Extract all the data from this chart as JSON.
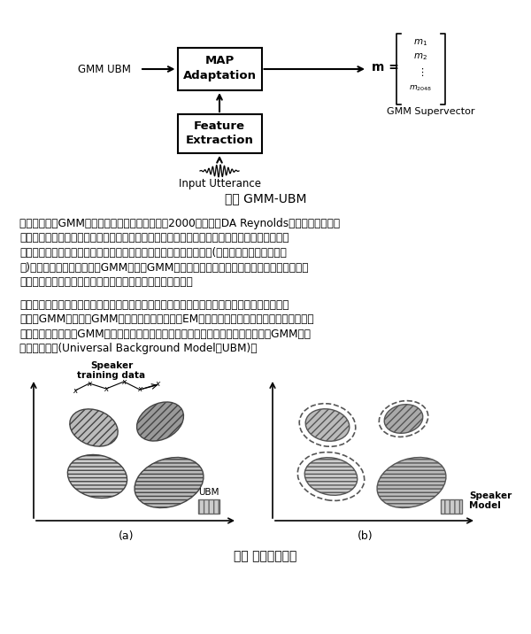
{
  "bg_color": "#ffffff",
  "fig_caption1": "图三 GMM-UBM",
  "fig_caption2": "图四 模型训练原理",
  "para1_lines": [
    "由于前边使用GMM模型对数据需求量很大，因此2000年前后，DA Reynolds的团队提出了一种",
    "改进的方案：既然没法从目标用户那里收集到足够的语音，那就换一种思路，可以从其他地方收",
    "集到大量非目标用户的声音，积少成多，我们将这些非目标用户数据(声纹识别领域称为背景数",
    "据)混合起来充分训练出一个GMM，这个GMM可以看作是对语音的表征，但由于它是从大量身",
    "份的混杂数据中训练而成，因此不具备表征具体身份的能力。"
  ],
  "para2_lines": [
    "它对语音特征在空间分布的概率模型给出了一个良好的预先估计，我们不必再像过去那样从头开",
    "始计算GMM的参数（GMM的参数估计是一种称为EM的迭代式估计算法），只需要基于目标用",
    "户的数据在这个混合GMM上进行参数的微调即可实现目标用户参数的估计，这个混合GMM就叫",
    "通用背景模型(Universal Background Model，UBM)。"
  ],
  "map_box_label1": "MAP",
  "map_box_label2": "Adaptation",
  "fe_box_label1": "Feature",
  "fe_box_label2": "Extraction",
  "gmm_ubm_label": "GMM UBM",
  "supervector_label": "GMM Supervector",
  "input_utterance_label": "Input Utterance",
  "speaker_label1": "Speaker",
  "speaker_label2": "training data",
  "ubm_label": "UBM",
  "speaker_model1": "Speaker",
  "speaker_model2": "Model",
  "label_a": "(a)",
  "label_b": "(b)"
}
